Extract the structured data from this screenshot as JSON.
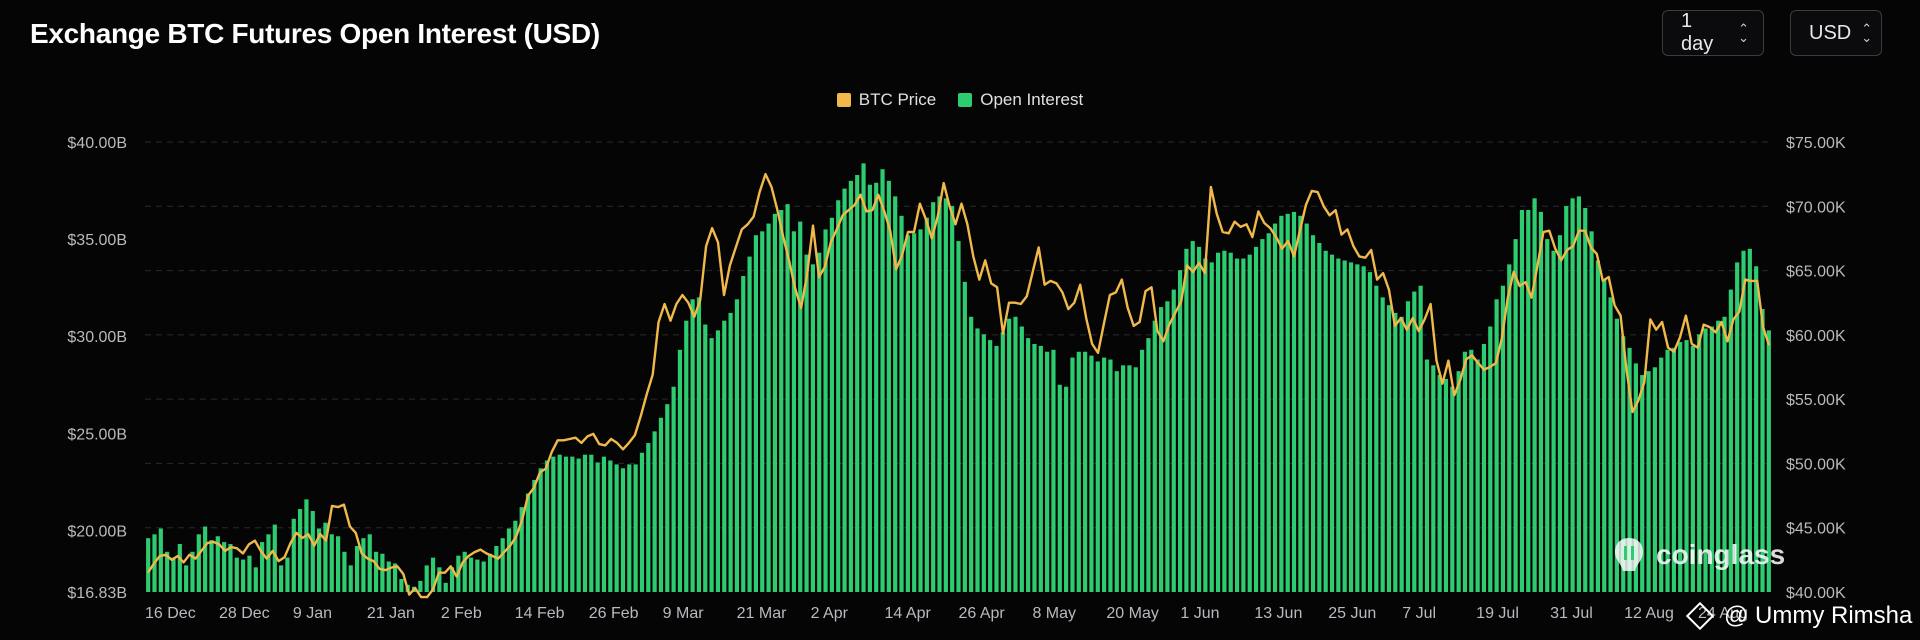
{
  "header": {
    "title": "Exchange BTC Futures Open Interest (USD)",
    "range": "1 day",
    "unit": "USD"
  },
  "watermark": "coinglass",
  "credit": "@ Ummy Rimsha",
  "colors": {
    "background": "#050506",
    "price": "#f0b94a",
    "open_interest": "#2ecc71",
    "grid": "#2a2a2e",
    "axis_text": "#b9b9bf"
  },
  "chart_data": {
    "type": "bar",
    "title": "Exchange BTC Futures Open Interest (USD)",
    "legend_position": "top-center",
    "grid": true,
    "x_ticks": [
      "16 Dec",
      "28 Dec",
      "9 Jan",
      "21 Jan",
      "2 Feb",
      "14 Feb",
      "26 Feb",
      "9 Mar",
      "21 Mar",
      "2 Apr",
      "14 Apr",
      "26 Apr",
      "8 May",
      "20 May",
      "1 Jun",
      "13 Jun",
      "25 Jun",
      "7 Jul",
      "19 Jul",
      "31 Jul",
      "12 Aug",
      "24 Aug"
    ],
    "y_left": {
      "ticks": [
        16.83,
        20,
        25,
        30,
        35,
        40
      ],
      "tick_labels": [
        "$16.83B",
        "$20.00B",
        "$25.00B",
        "$30.00B",
        "$35.00B",
        "$40.00B"
      ],
      "min": 16.83,
      "max": 40
    },
    "y_right": {
      "ticks": [
        40,
        45,
        50,
        55,
        60,
        65,
        70,
        75
      ],
      "tick_labels": [
        "$40.00K",
        "$45.00K",
        "$50.00K",
        "$55.00K",
        "$60.00K",
        "$65.00K",
        "$70.00K",
        "$75.00K"
      ],
      "min": 40,
      "max": 75
    },
    "series": [
      {
        "name": "Open Interest",
        "kind": "bar",
        "unit": "B USD",
        "values": [
          19.6,
          19.8,
          20.1,
          18.9,
          18.6,
          19.3,
          18.2,
          18.9,
          19.8,
          20.2,
          19.5,
          19.7,
          19.4,
          19.3,
          18.6,
          18.5,
          18.7,
          18.1,
          19.4,
          19.8,
          20.3,
          18.2,
          18.6,
          20.6,
          21.1,
          21.6,
          21.0,
          20.1,
          20.4,
          19.8,
          19.7,
          18.9,
          18.2,
          19.2,
          19.6,
          19.8,
          18.9,
          18.8,
          18.4,
          18.3,
          17.5,
          17.2,
          17.1,
          17.4,
          18.2,
          18.6,
          18.1,
          17.3,
          18.1,
          18.7,
          18.9,
          18.6,
          18.5,
          18.4,
          18.8,
          19.2,
          19.6,
          20.1,
          20.5,
          21.2,
          21.9,
          22.6,
          23.2,
          23.6,
          23.8,
          23.9,
          23.8,
          23.8,
          23.7,
          23.9,
          23.9,
          23.5,
          23.8,
          23.6,
          23.4,
          23.2,
          23.4,
          23.4,
          24.0,
          24.5,
          25.1,
          25.8,
          26.5,
          27.4,
          29.3,
          30.8,
          31.9,
          32.0,
          30.6,
          29.9,
          30.3,
          30.8,
          31.2,
          31.9,
          33.1,
          34.1,
          35.2,
          35.4,
          35.8,
          36.3,
          36.5,
          36.8,
          35.4,
          35.9,
          34.2,
          33.7,
          34.3,
          35.5,
          36.1,
          37.0,
          37.6,
          38.0,
          38.3,
          38.9,
          37.8,
          37.9,
          38.6,
          38.0,
          37.2,
          36.2,
          35.2,
          35.3,
          35.5,
          36.1,
          36.9,
          37.2,
          37.1,
          36.7,
          34.9,
          32.8,
          31.0,
          30.4,
          30.1,
          29.8,
          29.5,
          30.2,
          30.9,
          31.0,
          30.5,
          29.9,
          29.6,
          29.5,
          29.2,
          29.3,
          27.5,
          27.4,
          28.9,
          29.2,
          29.2,
          29.0,
          28.7,
          28.9,
          28.8,
          28.2,
          28.5,
          28.5,
          28.4,
          29.3,
          29.9,
          30.8,
          31.5,
          31.8,
          32.4,
          33.4,
          34.5,
          34.9,
          34.6,
          34.0,
          33.8,
          34.3,
          34.4,
          34.3,
          34.0,
          34.0,
          34.2,
          34.6,
          35.0,
          35.3,
          35.8,
          36.2,
          36.3,
          36.4,
          36.2,
          35.8,
          35.2,
          34.8,
          34.4,
          34.2,
          34.0,
          33.9,
          33.8,
          33.7,
          33.6,
          33.3,
          32.6,
          32.0,
          31.6,
          31.2,
          31.0,
          31.8,
          32.3,
          32.6,
          28.8,
          28.5,
          28.0,
          27.8,
          27.4,
          28.2,
          29.2,
          29.3,
          28.8,
          29.6,
          30.5,
          31.9,
          32.6,
          33.7,
          35.0,
          36.5,
          36.5,
          37.1,
          36.4,
          35.0,
          34.4,
          35.2,
          36.7,
          37.1,
          37.2,
          36.6,
          35.4,
          33.9,
          32.9,
          32.0,
          30.9,
          30.0,
          29.4,
          28.6,
          28.0,
          28.2,
          28.4,
          28.9,
          29.3,
          29.4,
          29.7,
          29.8,
          29.5,
          30.1,
          30.4,
          30.5,
          30.8,
          31.0,
          32.4,
          33.8,
          34.4,
          34.5,
          33.6,
          31.4,
          30.3
        ]
      },
      {
        "name": "BTC Price",
        "kind": "line",
        "unit": "K USD",
        "values": [
          41.5,
          42.2,
          42.8,
          42.9,
          42.5,
          42.8,
          42.3,
          42.9,
          42.6,
          43.2,
          43.8,
          43.9,
          43.7,
          43.2,
          43.5,
          43.4,
          43.0,
          43.7,
          44.0,
          43.2,
          42.6,
          43.2,
          42.4,
          42.7,
          43.8,
          44.6,
          44.2,
          44.5,
          43.6,
          44.5,
          44.0,
          46.7,
          46.6,
          46.8,
          45.1,
          44.6,
          43.0,
          42.6,
          42.4,
          41.8,
          41.7,
          41.9,
          42.0,
          41.4,
          39.8,
          40.3,
          39.6,
          39.6,
          40.2,
          41.5,
          41.5,
          42.0,
          41.2,
          42.3,
          42.8,
          43.1,
          43.3,
          43.0,
          42.8,
          42.6,
          43.1,
          43.6,
          44.3,
          45.6,
          47.5,
          48.1,
          49.3,
          49.6,
          50.9,
          51.8,
          51.8,
          51.9,
          52.0,
          51.6,
          52.1,
          52.3,
          51.5,
          51.4,
          51.9,
          51.6,
          51.1,
          51.6,
          52.2,
          53.7,
          55.4,
          56.9,
          61.0,
          62.4,
          61.1,
          62.4,
          63.1,
          62.5,
          61.4,
          62.7,
          66.9,
          68.3,
          67.2,
          63.1,
          65.4,
          66.8,
          68.2,
          68.6,
          69.2,
          71.1,
          72.5,
          71.5,
          69.7,
          67.6,
          65.7,
          63.6,
          62.1,
          64.7,
          68.5,
          64.5,
          65.3,
          67.2,
          68.2,
          69.3,
          69.7,
          70.1,
          70.9,
          69.6,
          69.7,
          70.9,
          69.6,
          68.1,
          65.1,
          66.2,
          68.0,
          68.0,
          70.2,
          69.0,
          67.5,
          69.2,
          71.8,
          70.0,
          68.6,
          70.2,
          68.6,
          66.1,
          64.3,
          65.8,
          64.0,
          63.7,
          60.1,
          62.5,
          62.5,
          62.4,
          63.0,
          64.9,
          66.8,
          63.9,
          64.2,
          64.0,
          63.3,
          62.0,
          62.5,
          63.9,
          61.3,
          59.3,
          58.6,
          60.9,
          63.1,
          63.3,
          64.3,
          62.1,
          60.7,
          61.0,
          63.4,
          63.7,
          60.3,
          59.5,
          60.8,
          61.7,
          62.6,
          65.4,
          64.9,
          65.6,
          64.8,
          71.5,
          69.4,
          68.0,
          67.9,
          68.8,
          68.4,
          68.6,
          67.6,
          69.6,
          68.7,
          68.3,
          67.6,
          66.7,
          67.3,
          66.1,
          68.1,
          70.1,
          71.2,
          71.1,
          70.0,
          69.3,
          69.7,
          67.8,
          68.2,
          66.9,
          66.1,
          66.0,
          66.6,
          64.3,
          64.8,
          63.5,
          60.7,
          61.3,
          60.4,
          61.3,
          60.3,
          61.2,
          62.4,
          58.0,
          56.2,
          58.0,
          55.3,
          56.5,
          58.1,
          58.4,
          57.8,
          57.3,
          57.5,
          57.8,
          59.7,
          62.9,
          64.9,
          63.8,
          64.1,
          62.9,
          65.4,
          68.0,
          68.1,
          66.7,
          65.8,
          66.6,
          66.9,
          68.1,
          68.1,
          66.8,
          66.3,
          64.2,
          64.5,
          62.3,
          61.5,
          57.3,
          54.0,
          54.9,
          56.3,
          61.2,
          60.4,
          61.0,
          59.0,
          58.7,
          59.8,
          61.5,
          59.3,
          59.0,
          60.8,
          60.6,
          60.2,
          61.0,
          59.5,
          61.2,
          61.8,
          64.3,
          64.2,
          64.2,
          60.6,
          59.2
        ]
      }
    ]
  }
}
